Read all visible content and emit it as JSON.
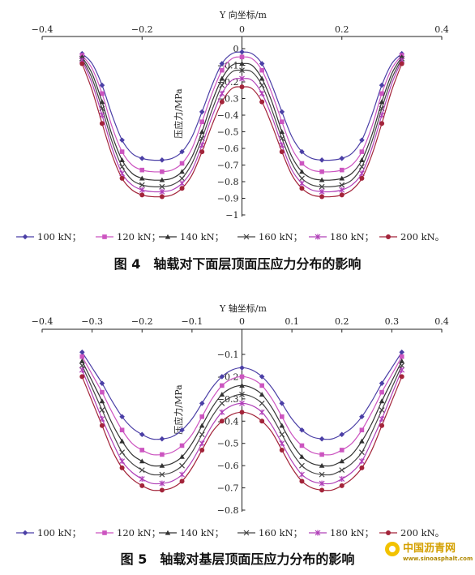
{
  "watermark": {
    "name": "中国沥青网",
    "url": "www.sinoasphalt.com"
  },
  "chart_data": [
    {
      "type": "line",
      "xlabel": "Y 向坐标/m",
      "ylabel": "压应力/MPa",
      "caption": "图 4　轴载对下面层顶面压应力分布的影响",
      "xlim": [
        -0.4,
        0.4
      ],
      "ylim": [
        -1,
        0
      ],
      "xticks": [
        "-0.4",
        "-0.2",
        "0",
        "0.2",
        "0.4"
      ],
      "yticks": [
        "0",
        "-0.1",
        "-0.2",
        "-0.3",
        "-0.4",
        "-0.5",
        "-0.6",
        "-0.7",
        "-0.8",
        "-0.9",
        "-1"
      ],
      "x": [
        -0.32,
        -0.3,
        -0.28,
        -0.26,
        -0.24,
        -0.22,
        -0.2,
        -0.18,
        -0.16,
        -0.14,
        -0.12,
        -0.1,
        -0.08,
        -0.06,
        -0.04,
        -0.02,
        0,
        0.02,
        0.04,
        0.06,
        0.08,
        0.1,
        0.12,
        0.14,
        0.16,
        0.18,
        0.2,
        0.22,
        0.24,
        0.26,
        0.28,
        0.3,
        0.32
      ],
      "series": [
        {
          "name": "100 kN；",
          "color": "#4b3fa6",
          "marker": "diamond",
          "values": [
            -0.03,
            -0.09,
            -0.22,
            -0.4,
            -0.55,
            -0.63,
            -0.66,
            -0.67,
            -0.67,
            -0.66,
            -0.62,
            -0.53,
            -0.38,
            -0.22,
            -0.09,
            -0.03,
            -0.02,
            -0.03,
            -0.09,
            -0.22,
            -0.38,
            -0.53,
            -0.62,
            -0.66,
            -0.67,
            -0.67,
            -0.66,
            -0.63,
            -0.55,
            -0.4,
            -0.22,
            -0.09,
            -0.03
          ]
        },
        {
          "name": "120 kN；",
          "color": "#cc55c0",
          "marker": "square",
          "values": [
            -0.04,
            -0.12,
            -0.27,
            -0.47,
            -0.62,
            -0.7,
            -0.73,
            -0.74,
            -0.74,
            -0.73,
            -0.69,
            -0.6,
            -0.44,
            -0.27,
            -0.13,
            -0.06,
            -0.05,
            -0.06,
            -0.13,
            -0.27,
            -0.44,
            -0.6,
            -0.69,
            -0.73,
            -0.74,
            -0.74,
            -0.73,
            -0.7,
            -0.62,
            -0.47,
            -0.27,
            -0.12,
            -0.04
          ]
        },
        {
          "name": "140 kN；",
          "color": "#333333",
          "marker": "triangle",
          "values": [
            -0.05,
            -0.15,
            -0.32,
            -0.52,
            -0.67,
            -0.75,
            -0.78,
            -0.79,
            -0.79,
            -0.78,
            -0.74,
            -0.65,
            -0.5,
            -0.32,
            -0.18,
            -0.1,
            -0.09,
            -0.1,
            -0.18,
            -0.32,
            -0.5,
            -0.65,
            -0.74,
            -0.78,
            -0.79,
            -0.79,
            -0.78,
            -0.75,
            -0.67,
            -0.52,
            -0.32,
            -0.15,
            -0.05
          ]
        },
        {
          "name": "160 kN；",
          "color": "#444444",
          "marker": "x",
          "values": [
            -0.06,
            -0.18,
            -0.36,
            -0.56,
            -0.71,
            -0.79,
            -0.82,
            -0.83,
            -0.83,
            -0.82,
            -0.78,
            -0.69,
            -0.54,
            -0.37,
            -0.22,
            -0.14,
            -0.13,
            -0.14,
            -0.22,
            -0.37,
            -0.54,
            -0.69,
            -0.78,
            -0.82,
            -0.83,
            -0.83,
            -0.82,
            -0.79,
            -0.71,
            -0.56,
            -0.36,
            -0.18,
            -0.06
          ]
        },
        {
          "name": "180 kN；",
          "color": "#b040b8",
          "marker": "star",
          "values": [
            -0.07,
            -0.21,
            -0.4,
            -0.6,
            -0.75,
            -0.82,
            -0.85,
            -0.86,
            -0.86,
            -0.85,
            -0.81,
            -0.73,
            -0.58,
            -0.41,
            -0.27,
            -0.19,
            -0.18,
            -0.19,
            -0.27,
            -0.41,
            -0.58,
            -0.73,
            -0.81,
            -0.85,
            -0.86,
            -0.86,
            -0.85,
            -0.82,
            -0.75,
            -0.6,
            -0.4,
            -0.21,
            -0.07
          ]
        },
        {
          "name": "200 kN。",
          "color": "#a3243a",
          "marker": "circle",
          "values": [
            -0.09,
            -0.25,
            -0.45,
            -0.64,
            -0.78,
            -0.85,
            -0.88,
            -0.89,
            -0.89,
            -0.88,
            -0.84,
            -0.76,
            -0.62,
            -0.46,
            -0.32,
            -0.24,
            -0.23,
            -0.24,
            -0.32,
            -0.46,
            -0.62,
            -0.76,
            -0.84,
            -0.88,
            -0.89,
            -0.89,
            -0.88,
            -0.85,
            -0.78,
            -0.64,
            -0.45,
            -0.25,
            -0.09
          ]
        }
      ]
    },
    {
      "type": "line",
      "xlabel": "Y 轴坐标/m",
      "ylabel": "压应力/MPa",
      "caption": "图 5　轴载对基层顶面压应力分布的影响",
      "xlim": [
        -0.4,
        0.4
      ],
      "ylim": [
        -0.8,
        -0.1
      ],
      "xticks": [
        "-0.4",
        "-0.3",
        "-0.2",
        "-0.1",
        "0",
        "0.1",
        "0.2",
        "0.3",
        "0.4"
      ],
      "yticks": [
        "-0.1",
        "-0.2",
        "-0.3",
        "-0.4",
        "-0.5",
        "-0.6",
        "-0.7",
        "-0.8"
      ],
      "x": [
        -0.32,
        -0.3,
        -0.28,
        -0.26,
        -0.24,
        -0.22,
        -0.2,
        -0.18,
        -0.16,
        -0.14,
        -0.12,
        -0.1,
        -0.08,
        -0.06,
        -0.04,
        -0.02,
        0,
        0.02,
        0.04,
        0.06,
        0.08,
        0.1,
        0.12,
        0.14,
        0.16,
        0.18,
        0.2,
        0.22,
        0.24,
        0.26,
        0.28,
        0.3,
        0.32
      ],
      "series": [
        {
          "name": "100 kN；",
          "color": "#4b3fa6",
          "marker": "diamond",
          "values": [
            -0.09,
            -0.16,
            -0.23,
            -0.31,
            -0.38,
            -0.43,
            -0.46,
            -0.48,
            -0.48,
            -0.47,
            -0.44,
            -0.39,
            -0.32,
            -0.25,
            -0.2,
            -0.17,
            -0.16,
            -0.17,
            -0.2,
            -0.25,
            -0.32,
            -0.39,
            -0.44,
            -0.47,
            -0.48,
            -0.48,
            -0.46,
            -0.43,
            -0.38,
            -0.31,
            -0.23,
            -0.16,
            -0.09
          ]
        },
        {
          "name": "120 kN；",
          "color": "#cc55c0",
          "marker": "square",
          "values": [
            -0.11,
            -0.19,
            -0.27,
            -0.36,
            -0.44,
            -0.5,
            -0.53,
            -0.55,
            -0.55,
            -0.54,
            -0.51,
            -0.46,
            -0.38,
            -0.3,
            -0.24,
            -0.21,
            -0.2,
            -0.21,
            -0.24,
            -0.3,
            -0.38,
            -0.46,
            -0.51,
            -0.54,
            -0.55,
            -0.55,
            -0.53,
            -0.5,
            -0.44,
            -0.36,
            -0.27,
            -0.19,
            -0.11
          ]
        },
        {
          "name": "140 kN；",
          "color": "#333333",
          "marker": "triangle",
          "values": [
            -0.13,
            -0.22,
            -0.31,
            -0.41,
            -0.49,
            -0.55,
            -0.58,
            -0.6,
            -0.6,
            -0.59,
            -0.56,
            -0.5,
            -0.42,
            -0.34,
            -0.28,
            -0.25,
            -0.24,
            -0.25,
            -0.28,
            -0.34,
            -0.42,
            -0.5,
            -0.56,
            -0.59,
            -0.6,
            -0.6,
            -0.58,
            -0.55,
            -0.49,
            -0.41,
            -0.31,
            -0.22,
            -0.13
          ]
        },
        {
          "name": "160 kN；",
          "color": "#444444",
          "marker": "x",
          "values": [
            -0.15,
            -0.25,
            -0.35,
            -0.45,
            -0.54,
            -0.59,
            -0.62,
            -0.64,
            -0.64,
            -0.63,
            -0.6,
            -0.54,
            -0.46,
            -0.38,
            -0.32,
            -0.29,
            -0.28,
            -0.29,
            -0.32,
            -0.38,
            -0.46,
            -0.54,
            -0.6,
            -0.63,
            -0.64,
            -0.64,
            -0.62,
            -0.59,
            -0.54,
            -0.45,
            -0.35,
            -0.25,
            -0.15
          ]
        },
        {
          "name": "180 kN；",
          "color": "#b040b8",
          "marker": "star",
          "values": [
            -0.17,
            -0.28,
            -0.39,
            -0.49,
            -0.58,
            -0.63,
            -0.66,
            -0.68,
            -0.68,
            -0.67,
            -0.64,
            -0.58,
            -0.5,
            -0.42,
            -0.36,
            -0.33,
            -0.32,
            -0.33,
            -0.36,
            -0.42,
            -0.5,
            -0.58,
            -0.64,
            -0.67,
            -0.68,
            -0.68,
            -0.66,
            -0.63,
            -0.58,
            -0.49,
            -0.39,
            -0.28,
            -0.17
          ]
        },
        {
          "name": "200 kN。",
          "color": "#a3243a",
          "marker": "circle",
          "values": [
            -0.2,
            -0.31,
            -0.42,
            -0.53,
            -0.61,
            -0.66,
            -0.69,
            -0.71,
            -0.71,
            -0.7,
            -0.67,
            -0.61,
            -0.53,
            -0.45,
            -0.4,
            -0.37,
            -0.36,
            -0.37,
            -0.4,
            -0.45,
            -0.53,
            -0.61,
            -0.67,
            -0.7,
            -0.71,
            -0.71,
            -0.69,
            -0.66,
            -0.61,
            -0.53,
            -0.42,
            -0.31,
            -0.2
          ]
        }
      ]
    }
  ]
}
